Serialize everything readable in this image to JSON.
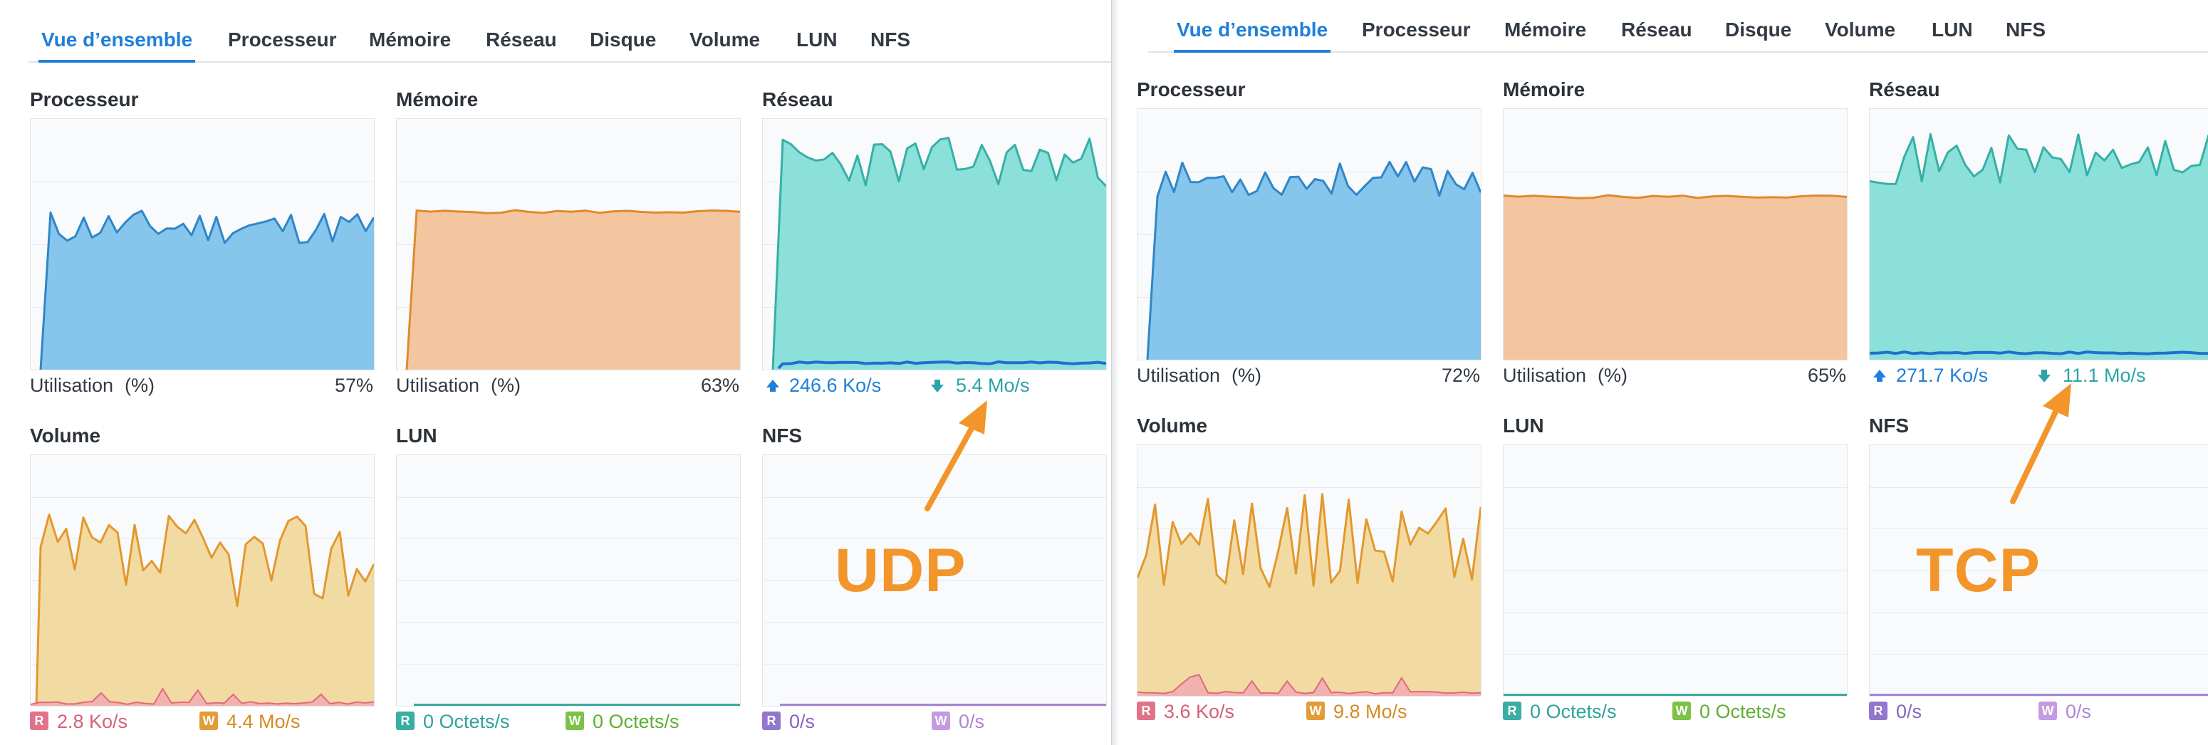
{
  "colors": {
    "accent": "#1f7fd8",
    "cpu_line": "#2f86c9",
    "cpu_fill": "#86c5ec",
    "mem_line": "#df8a2f",
    "mem_fill": "#f4c6a0",
    "net_line": "#36b0a6",
    "net_fill": "#8be0da",
    "net_up_line": "#1f6fd0",
    "vol_line": "#e3982e",
    "vol_fill": "#f2dba3",
    "vol_read_line": "#e2687a",
    "vol_read_fill": "#f1a9b3",
    "lun": "#3aa99e",
    "nfs": "#a585d4",
    "badge_r_vol": "#e0738a",
    "badge_w_vol": "#e39c3a",
    "badge_r_lun": "#3aaea3",
    "badge_w_lun": "#7cc248",
    "badge_r_nfs": "#9277cc",
    "badge_w_nfs": "#c69ae0",
    "annotation": "#f2962b"
  },
  "tabs": [
    "Vue d’ensemble",
    "Processeur",
    "Mémoire",
    "Réseau",
    "Disque",
    "Volume",
    "LUN",
    "NFS"
  ],
  "sections": {
    "cpu": "Processeur",
    "memory": "Mémoire",
    "network": "Réseau",
    "volume": "Volume",
    "lun": "LUN",
    "nfs": "NFS"
  },
  "labels": {
    "utilisation": "Utilisation",
    "percent_unit": "(%)",
    "r": "R",
    "w": "W"
  },
  "left": {
    "annotation": "UDP",
    "cpu_value": "57%",
    "mem_value": "63%",
    "net_up": "246.6 Ko/s",
    "net_down": "5.4 Mo/s",
    "vol_read": "2.8 Ko/s",
    "vol_write": "4.4 Mo/s",
    "lun_read": "0 Octets/s",
    "lun_write": "0 Octets/s",
    "nfs_read": "0/s",
    "nfs_write": "0/s"
  },
  "right": {
    "annotation": "TCP",
    "cpu_value": "72%",
    "mem_value": "65%",
    "net_up": "271.7 Ko/s",
    "net_down": "11.1 Mo/s",
    "vol_read": "3.6 Ko/s",
    "vol_write": "9.8 Mo/s",
    "lun_read": "0 Octets/s",
    "lun_write": "0 Octets/s",
    "nfs_read": "0/s",
    "nfs_write": "0/s"
  }
}
